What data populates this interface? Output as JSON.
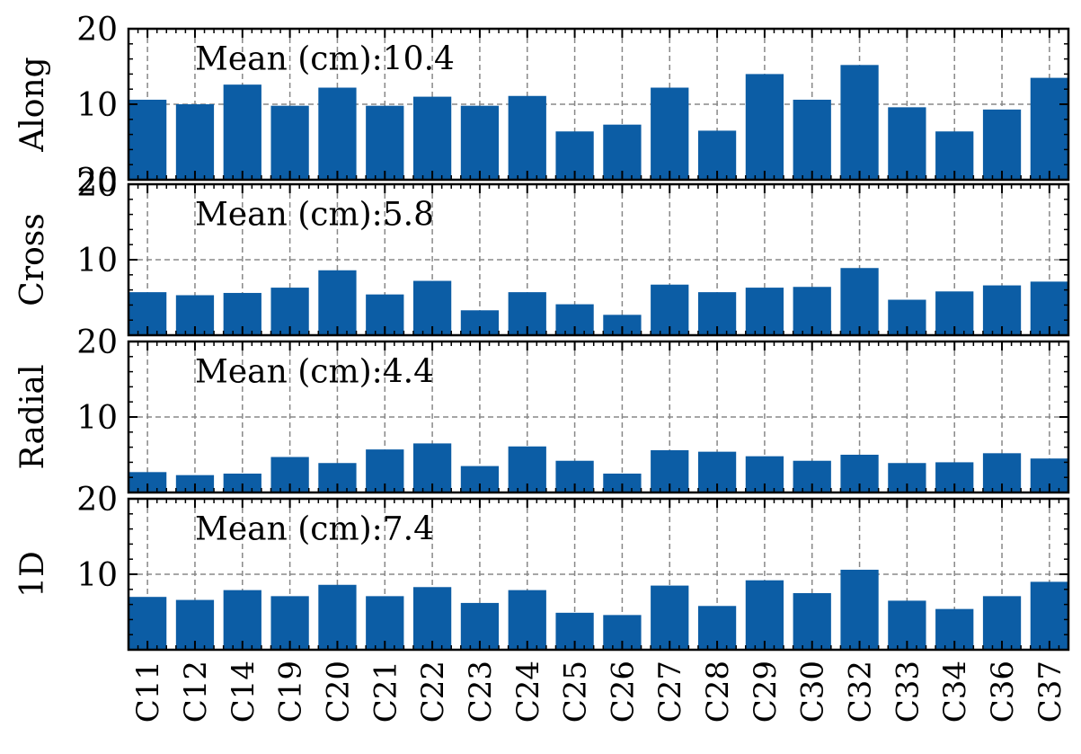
{
  "chart_data": {
    "type": "bar",
    "categories": [
      "C11",
      "C12",
      "C14",
      "C19",
      "C20",
      "C21",
      "C22",
      "C23",
      "C24",
      "C25",
      "C26",
      "C27",
      "C28",
      "C29",
      "C30",
      "C32",
      "C33",
      "C34",
      "C36",
      "C37"
    ],
    "bar_color": "#0c5da5",
    "grid": true,
    "ylim": [
      0,
      20
    ],
    "panels": [
      {
        "ylabel": "Along",
        "yticks": [
          "20",
          "10",
          "20"
        ],
        "annotation": "Mean (cm):10.4",
        "values": [
          10.6,
          10.0,
          12.6,
          9.8,
          12.2,
          9.8,
          11.0,
          9.8,
          11.1,
          6.4,
          7.3,
          12.2,
          6.5,
          14.0,
          10.6,
          15.2,
          9.6,
          6.4,
          9.3,
          13.5
        ]
      },
      {
        "ylabel": "Cross",
        "yticks": [
          "20",
          "10"
        ],
        "annotation": "Mean (cm):5.8",
        "values": [
          5.7,
          5.3,
          5.6,
          6.3,
          8.6,
          5.4,
          7.2,
          3.3,
          5.7,
          4.1,
          2.7,
          6.7,
          5.7,
          6.3,
          6.4,
          8.9,
          4.7,
          5.8,
          6.6,
          7.1
        ]
      },
      {
        "ylabel": "Radial",
        "yticks": [
          "20",
          "10"
        ],
        "annotation": "Mean (cm):4.4",
        "values": [
          2.7,
          2.3,
          2.5,
          4.7,
          3.9,
          5.7,
          6.5,
          3.5,
          6.1,
          4.2,
          2.5,
          5.6,
          5.4,
          4.8,
          4.2,
          5.0,
          3.9,
          4.0,
          5.2,
          4.5
        ]
      },
      {
        "ylabel": "1D",
        "yticks": [
          "20",
          "10"
        ],
        "annotation": "Mean (cm):7.4",
        "values": [
          7.0,
          6.6,
          7.9,
          7.1,
          8.6,
          7.1,
          8.3,
          6.2,
          7.9,
          4.9,
          4.6,
          8.5,
          5.8,
          9.2,
          7.5,
          10.6,
          6.5,
          5.4,
          7.1,
          9.0
        ]
      }
    ]
  }
}
